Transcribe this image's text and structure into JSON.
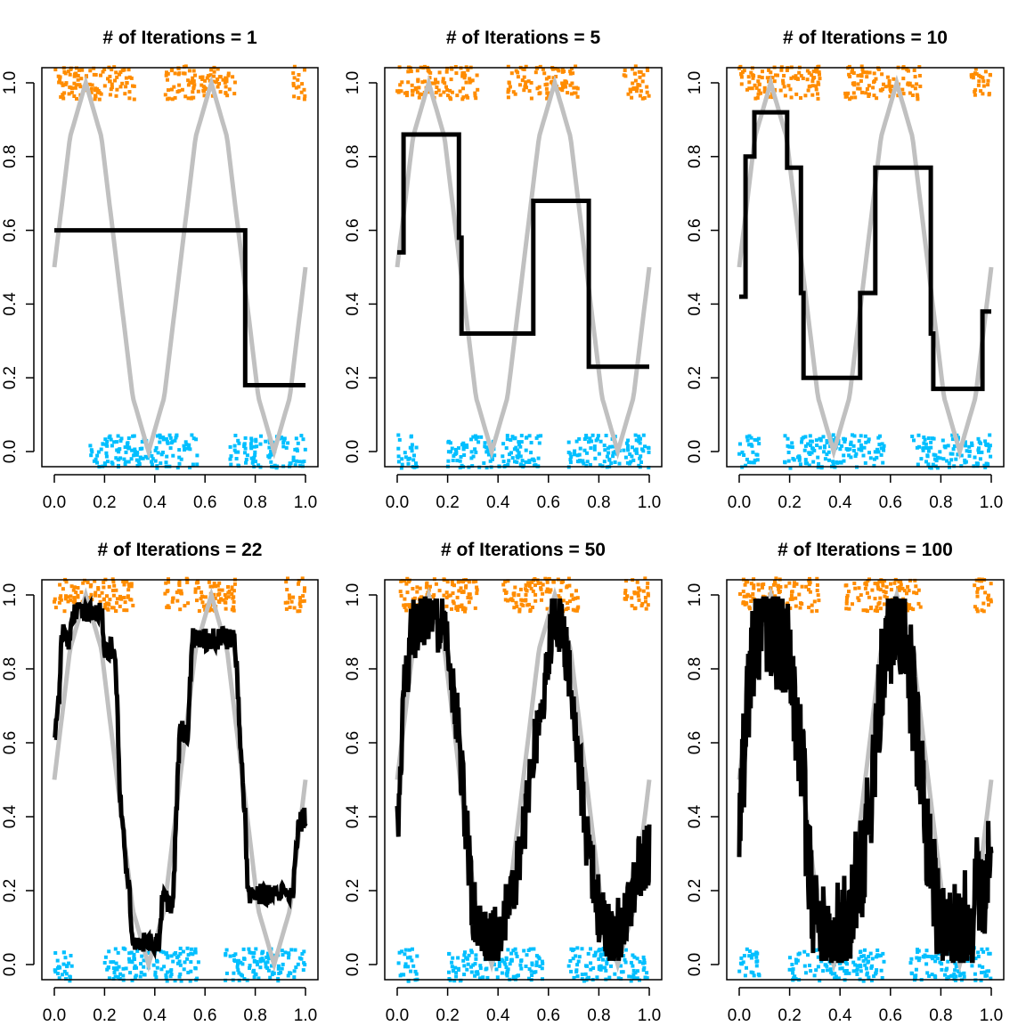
{
  "colors": {
    "class1": "#ff8c00",
    "class0": "#00bfff",
    "truth": "#c0c0c0",
    "fit": "#000000",
    "axis": "#000000"
  },
  "chart_data": [
    {
      "type": "line",
      "title": "# of Iterations =  1",
      "xlim": [
        0,
        1
      ],
      "ylim": [
        0,
        1
      ],
      "xticks": [
        0.0,
        0.2,
        0.4,
        0.6,
        0.8,
        1.0
      ],
      "xtick_labels": [
        "0.0",
        "0.2",
        "0.4",
        "0.6",
        "0.8",
        "1.0"
      ],
      "yticks": [
        0.0,
        0.2,
        0.4,
        0.6,
        0.8,
        1.0
      ],
      "ytick_labels": [
        "0.0",
        "0.2",
        "0.4",
        "0.6",
        "0.8",
        "1.0"
      ],
      "series": [
        {
          "role": "truth",
          "x": [
            0.0,
            0.0625,
            0.125,
            0.1875,
            0.25,
            0.3125,
            0.375,
            0.4375,
            0.5,
            0.5625,
            0.625,
            0.6875,
            0.75,
            0.8125,
            0.875,
            0.9375,
            1.0
          ],
          "y": [
            0.5,
            0.853,
            1.0,
            0.853,
            0.5,
            0.147,
            0.0,
            0.147,
            0.5,
            0.853,
            1.0,
            0.853,
            0.5,
            0.147,
            0.0,
            0.147,
            0.5
          ]
        },
        {
          "role": "fit",
          "x": [
            0.0,
            0.76,
            0.76,
            1.0
          ],
          "y": [
            0.6,
            0.6,
            0.18,
            0.18
          ]
        }
      ],
      "points": {
        "class1_y": 1.0,
        "class0_y": 0.0,
        "class1_x_ranges": [
          [
            0.0,
            0.32
          ],
          [
            0.44,
            0.72
          ],
          [
            0.95,
            1.0
          ]
        ],
        "class0_x_ranges": [
          [
            0.14,
            0.57
          ],
          [
            0.7,
            1.0
          ]
        ]
      }
    },
    {
      "type": "line",
      "title": "# of Iterations =  5",
      "xlim": [
        0,
        1
      ],
      "ylim": [
        0,
        1
      ],
      "xticks": [
        0.0,
        0.2,
        0.4,
        0.6,
        0.8,
        1.0
      ],
      "xtick_labels": [
        "0.0",
        "0.2",
        "0.4",
        "0.6",
        "0.8",
        "1.0"
      ],
      "yticks": [
        0.0,
        0.2,
        0.4,
        0.6,
        0.8,
        1.0
      ],
      "ytick_labels": [
        "0.0",
        "0.2",
        "0.4",
        "0.6",
        "0.8",
        "1.0"
      ],
      "series": [
        {
          "role": "truth",
          "x": [
            0.0,
            0.0625,
            0.125,
            0.1875,
            0.25,
            0.3125,
            0.375,
            0.4375,
            0.5,
            0.5625,
            0.625,
            0.6875,
            0.75,
            0.8125,
            0.875,
            0.9375,
            1.0
          ],
          "y": [
            0.5,
            0.853,
            1.0,
            0.853,
            0.5,
            0.147,
            0.0,
            0.147,
            0.5,
            0.853,
            1.0,
            0.853,
            0.5,
            0.147,
            0.0,
            0.147,
            0.5
          ]
        },
        {
          "role": "fit",
          "x": [
            0.0,
            0.025,
            0.025,
            0.245,
            0.245,
            0.255,
            0.255,
            0.54,
            0.54,
            0.76,
            0.76,
            1.0
          ],
          "y": [
            0.54,
            0.54,
            0.86,
            0.86,
            0.58,
            0.58,
            0.32,
            0.32,
            0.68,
            0.68,
            0.23,
            0.23
          ]
        }
      ],
      "points": {
        "class1_y": 1.0,
        "class0_y": 0.0,
        "class1_x_ranges": [
          [
            0.0,
            0.32
          ],
          [
            0.44,
            0.72
          ],
          [
            0.9,
            1.0
          ]
        ],
        "class0_x_ranges": [
          [
            0.0,
            0.08
          ],
          [
            0.2,
            0.58
          ],
          [
            0.68,
            1.0
          ]
        ]
      }
    },
    {
      "type": "line",
      "title": "# of Iterations =  10",
      "xlim": [
        0,
        1
      ],
      "ylim": [
        0,
        1
      ],
      "xticks": [
        0.0,
        0.2,
        0.4,
        0.6,
        0.8,
        1.0
      ],
      "xtick_labels": [
        "0.0",
        "0.2",
        "0.4",
        "0.6",
        "0.8",
        "1.0"
      ],
      "yticks": [
        0.0,
        0.2,
        0.4,
        0.6,
        0.8,
        1.0
      ],
      "ytick_labels": [
        "0.0",
        "0.2",
        "0.4",
        "0.6",
        "0.8",
        "1.0"
      ],
      "series": [
        {
          "role": "truth",
          "x": [
            0.0,
            0.0625,
            0.125,
            0.1875,
            0.25,
            0.3125,
            0.375,
            0.4375,
            0.5,
            0.5625,
            0.625,
            0.6875,
            0.75,
            0.8125,
            0.875,
            0.9375,
            1.0
          ],
          "y": [
            0.5,
            0.853,
            1.0,
            0.853,
            0.5,
            0.147,
            0.0,
            0.147,
            0.5,
            0.853,
            1.0,
            0.853,
            0.5,
            0.147,
            0.0,
            0.147,
            0.5
          ]
        },
        {
          "role": "fit",
          "x": [
            0.0,
            0.025,
            0.025,
            0.06,
            0.06,
            0.19,
            0.19,
            0.245,
            0.245,
            0.255,
            0.255,
            0.48,
            0.48,
            0.54,
            0.54,
            0.76,
            0.76,
            0.77,
            0.77,
            0.965,
            0.965,
            1.0
          ],
          "y": [
            0.42,
            0.42,
            0.8,
            0.8,
            0.92,
            0.92,
            0.77,
            0.77,
            0.43,
            0.43,
            0.2,
            0.2,
            0.43,
            0.43,
            0.77,
            0.77,
            0.32,
            0.32,
            0.17,
            0.17,
            0.38,
            0.38
          ]
        }
      ],
      "points": {
        "class1_y": 1.0,
        "class0_y": 0.0,
        "class1_x_ranges": [
          [
            0.0,
            0.32
          ],
          [
            0.42,
            0.72
          ],
          [
            0.92,
            1.0
          ]
        ],
        "class0_x_ranges": [
          [
            0.0,
            0.08
          ],
          [
            0.18,
            0.58
          ],
          [
            0.68,
            1.0
          ]
        ]
      }
    },
    {
      "type": "line",
      "title": "# of Iterations =  22",
      "xlim": [
        0,
        1
      ],
      "ylim": [
        0,
        1
      ],
      "xticks": [
        0.0,
        0.2,
        0.4,
        0.6,
        0.8,
        1.0
      ],
      "xtick_labels": [
        "0.0",
        "0.2",
        "0.4",
        "0.6",
        "0.8",
        "1.0"
      ],
      "yticks": [
        0.0,
        0.2,
        0.4,
        0.6,
        0.8,
        1.0
      ],
      "ytick_labels": [
        "0.0",
        "0.2",
        "0.4",
        "0.6",
        "0.8",
        "1.0"
      ],
      "series": [
        {
          "role": "truth",
          "x": [
            0.0,
            0.0625,
            0.125,
            0.1875,
            0.25,
            0.3125,
            0.375,
            0.4375,
            0.5,
            0.5625,
            0.625,
            0.6875,
            0.75,
            0.8125,
            0.875,
            0.9375,
            1.0
          ],
          "y": [
            0.5,
            0.853,
            1.0,
            0.853,
            0.5,
            0.147,
            0.0,
            0.147,
            0.5,
            0.853,
            1.0,
            0.853,
            0.5,
            0.147,
            0.0,
            0.147,
            0.5
          ]
        },
        {
          "role": "fit",
          "jitter": 0.03,
          "x": [
            0.0,
            0.02,
            0.03,
            0.06,
            0.07,
            0.19,
            0.2,
            0.24,
            0.25,
            0.26,
            0.28,
            0.3,
            0.31,
            0.42,
            0.43,
            0.47,
            0.5,
            0.53,
            0.55,
            0.72,
            0.74,
            0.76,
            0.77,
            0.95,
            0.97,
            1.0
          ],
          "y": [
            0.62,
            0.72,
            0.9,
            0.88,
            0.95,
            0.95,
            0.84,
            0.86,
            0.7,
            0.48,
            0.3,
            0.2,
            0.06,
            0.06,
            0.2,
            0.14,
            0.64,
            0.62,
            0.88,
            0.88,
            0.6,
            0.4,
            0.19,
            0.19,
            0.38,
            0.4
          ]
        }
      ],
      "points": {
        "class1_y": 1.0,
        "class0_y": 0.0,
        "class1_x_ranges": [
          [
            0.0,
            0.32
          ],
          [
            0.44,
            0.72
          ],
          [
            0.92,
            1.0
          ]
        ],
        "class0_x_ranges": [
          [
            0.0,
            0.08
          ],
          [
            0.2,
            0.58
          ],
          [
            0.68,
            1.0
          ]
        ]
      }
    },
    {
      "type": "line",
      "title": "# of Iterations =  50",
      "xlim": [
        0,
        1
      ],
      "ylim": [
        0,
        1
      ],
      "xticks": [
        0.0,
        0.2,
        0.4,
        0.6,
        0.8,
        1.0
      ],
      "xtick_labels": [
        "0.0",
        "0.2",
        "0.4",
        "0.6",
        "0.8",
        "1.0"
      ],
      "yticks": [
        0.0,
        0.2,
        0.4,
        0.6,
        0.8,
        1.0
      ],
      "ytick_labels": [
        "0.0",
        "0.2",
        "0.4",
        "0.6",
        "0.8",
        "1.0"
      ],
      "series": [
        {
          "role": "truth",
          "x": [
            0.0,
            0.0625,
            0.125,
            0.1875,
            0.25,
            0.3125,
            0.375,
            0.4375,
            0.5,
            0.5625,
            0.625,
            0.6875,
            0.75,
            0.8125,
            0.875,
            0.9375,
            1.0
          ],
          "y": [
            0.5,
            0.853,
            1.0,
            0.853,
            0.5,
            0.147,
            0.0,
            0.147,
            0.5,
            0.853,
            1.0,
            0.853,
            0.5,
            0.147,
            0.0,
            0.147,
            0.5
          ]
        },
        {
          "role": "fit",
          "jitter": 0.09,
          "x": [
            0.0,
            0.03,
            0.06,
            0.1,
            0.15,
            0.2,
            0.24,
            0.27,
            0.3,
            0.34,
            0.38,
            0.42,
            0.46,
            0.5,
            0.54,
            0.58,
            0.62,
            0.66,
            0.7,
            0.75,
            0.8,
            0.85,
            0.9,
            0.95,
            1.0
          ],
          "y": [
            0.35,
            0.75,
            0.9,
            0.95,
            0.95,
            0.88,
            0.65,
            0.4,
            0.15,
            0.06,
            0.06,
            0.12,
            0.2,
            0.35,
            0.55,
            0.75,
            0.95,
            0.9,
            0.7,
            0.35,
            0.15,
            0.08,
            0.1,
            0.25,
            0.3
          ]
        }
      ],
      "points": {
        "class1_y": 1.0,
        "class0_y": 0.0,
        "class1_x_ranges": [
          [
            0.0,
            0.32
          ],
          [
            0.42,
            0.72
          ],
          [
            0.9,
            1.0
          ]
        ],
        "class0_x_ranges": [
          [
            0.0,
            0.08
          ],
          [
            0.2,
            0.58
          ],
          [
            0.68,
            1.0
          ]
        ]
      }
    },
    {
      "type": "line",
      "title": "# of Iterations =  100",
      "xlim": [
        0,
        1
      ],
      "ylim": [
        0,
        1
      ],
      "xticks": [
        0.0,
        0.2,
        0.4,
        0.6,
        0.8,
        1.0
      ],
      "xtick_labels": [
        "0.0",
        "0.2",
        "0.4",
        "0.6",
        "0.8",
        "1.0"
      ],
      "yticks": [
        0.0,
        0.2,
        0.4,
        0.6,
        0.8,
        1.0
      ],
      "ytick_labels": [
        "0.0",
        "0.2",
        "0.4",
        "0.6",
        "0.8",
        "1.0"
      ],
      "series": [
        {
          "role": "truth",
          "x": [
            0.0,
            0.0625,
            0.125,
            0.1875,
            0.25,
            0.3125,
            0.375,
            0.4375,
            0.5,
            0.5625,
            0.625,
            0.6875,
            0.75,
            0.8125,
            0.875,
            0.9375,
            1.0
          ],
          "y": [
            0.5,
            0.853,
            1.0,
            0.853,
            0.5,
            0.147,
            0.0,
            0.147,
            0.5,
            0.853,
            1.0,
            0.853,
            0.5,
            0.147,
            0.0,
            0.147,
            0.5
          ]
        },
        {
          "role": "fit",
          "jitter": 0.16,
          "x": [
            0.0,
            0.03,
            0.06,
            0.1,
            0.15,
            0.2,
            0.24,
            0.27,
            0.3,
            0.34,
            0.38,
            0.42,
            0.46,
            0.5,
            0.54,
            0.58,
            0.62,
            0.66,
            0.7,
            0.75,
            0.8,
            0.85,
            0.9,
            0.95,
            1.0
          ],
          "y": [
            0.3,
            0.7,
            0.9,
            0.95,
            0.9,
            0.85,
            0.6,
            0.35,
            0.12,
            0.05,
            0.06,
            0.1,
            0.2,
            0.3,
            0.6,
            0.85,
            0.95,
            0.9,
            0.65,
            0.3,
            0.12,
            0.06,
            0.1,
            0.2,
            0.25
          ]
        }
      ],
      "points": {
        "class1_y": 1.0,
        "class0_y": 0.0,
        "class1_x_ranges": [
          [
            0.0,
            0.32
          ],
          [
            0.42,
            0.72
          ],
          [
            0.92,
            1.0
          ]
        ],
        "class0_x_ranges": [
          [
            0.0,
            0.08
          ],
          [
            0.2,
            0.58
          ],
          [
            0.68,
            1.0
          ]
        ]
      }
    }
  ]
}
